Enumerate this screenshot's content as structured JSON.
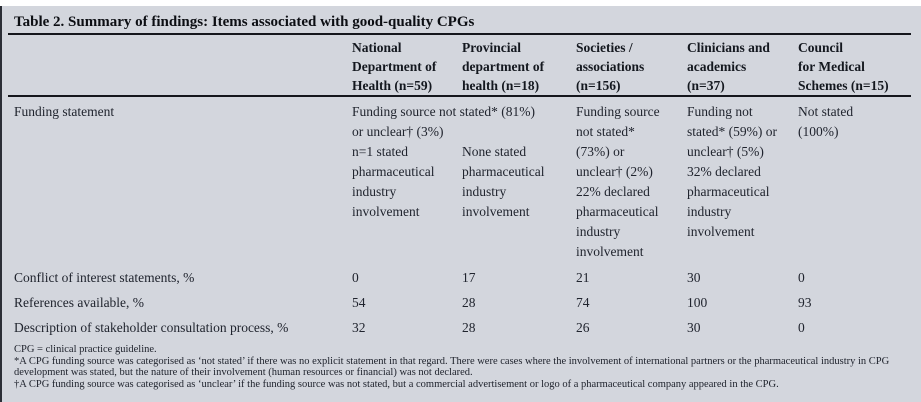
{
  "table": {
    "title": "Table 2. Summary of findings: Items associated with good-quality CPGs",
    "columns": [
      "",
      [
        "National",
        "Department of",
        "Health (n=59)"
      ],
      [
        "Provincial",
        "department of",
        "health (n=18)"
      ],
      [
        "Societies /",
        "associations",
        "(n=156)"
      ],
      [
        "Clinicians and",
        "academics",
        "(n=37)"
      ],
      [
        "Council",
        "for Medical",
        "Schemes (n=15)"
      ]
    ],
    "rows": [
      {
        "label": "Funding statement",
        "cells": [
          [
            "Funding source not stated* (81%)",
            "or unclear† (3%)",
            "n=1 stated",
            "pharmaceutical",
            "industry",
            "involvement"
          ],
          [
            "",
            "",
            "None stated",
            "pharmaceutical",
            "industry",
            "involvement"
          ],
          [
            "Funding source",
            "not stated*",
            "(73%) or",
            "unclear† (2%)",
            "22% declared",
            "pharmaceutical",
            "industry",
            "involvement"
          ],
          [
            "Funding not",
            "stated* (59%) or",
            "unclear† (5%)",
            "32% declared",
            "pharmaceutical",
            "industry",
            "involvement"
          ],
          [
            "Not stated",
            "(100%)"
          ]
        ]
      },
      {
        "label": "Conflict of interest statements, %",
        "cells": [
          "0",
          "17",
          "21",
          "30",
          "0"
        ]
      },
      {
        "label": "References available, %",
        "cells": [
          "54",
          "28",
          "74",
          "100",
          "93"
        ]
      },
      {
        "label": "Description of stakeholder consultation process, %",
        "cells": [
          "32",
          "28",
          "26",
          "30",
          "0"
        ]
      }
    ],
    "footnotes": [
      "CPG = clinical practice guideline.",
      "*A CPG funding source was categorised as ‘not stated’ if there was no explicit statement in that regard. There were cases where the involvement of international partners or the pharmaceutical industry in CPG development was stated, but the nature of their involvement (human resources or financial) was not declared.",
      "†A CPG funding source was categorised as ‘unclear’ if the funding source was not stated, but a commercial advertisement or logo of a pharmaceutical company appeared in the CPG."
    ],
    "colors": {
      "panel_background": "#d3d6dd",
      "rule": "#14161c",
      "text": "#20242e"
    }
  }
}
